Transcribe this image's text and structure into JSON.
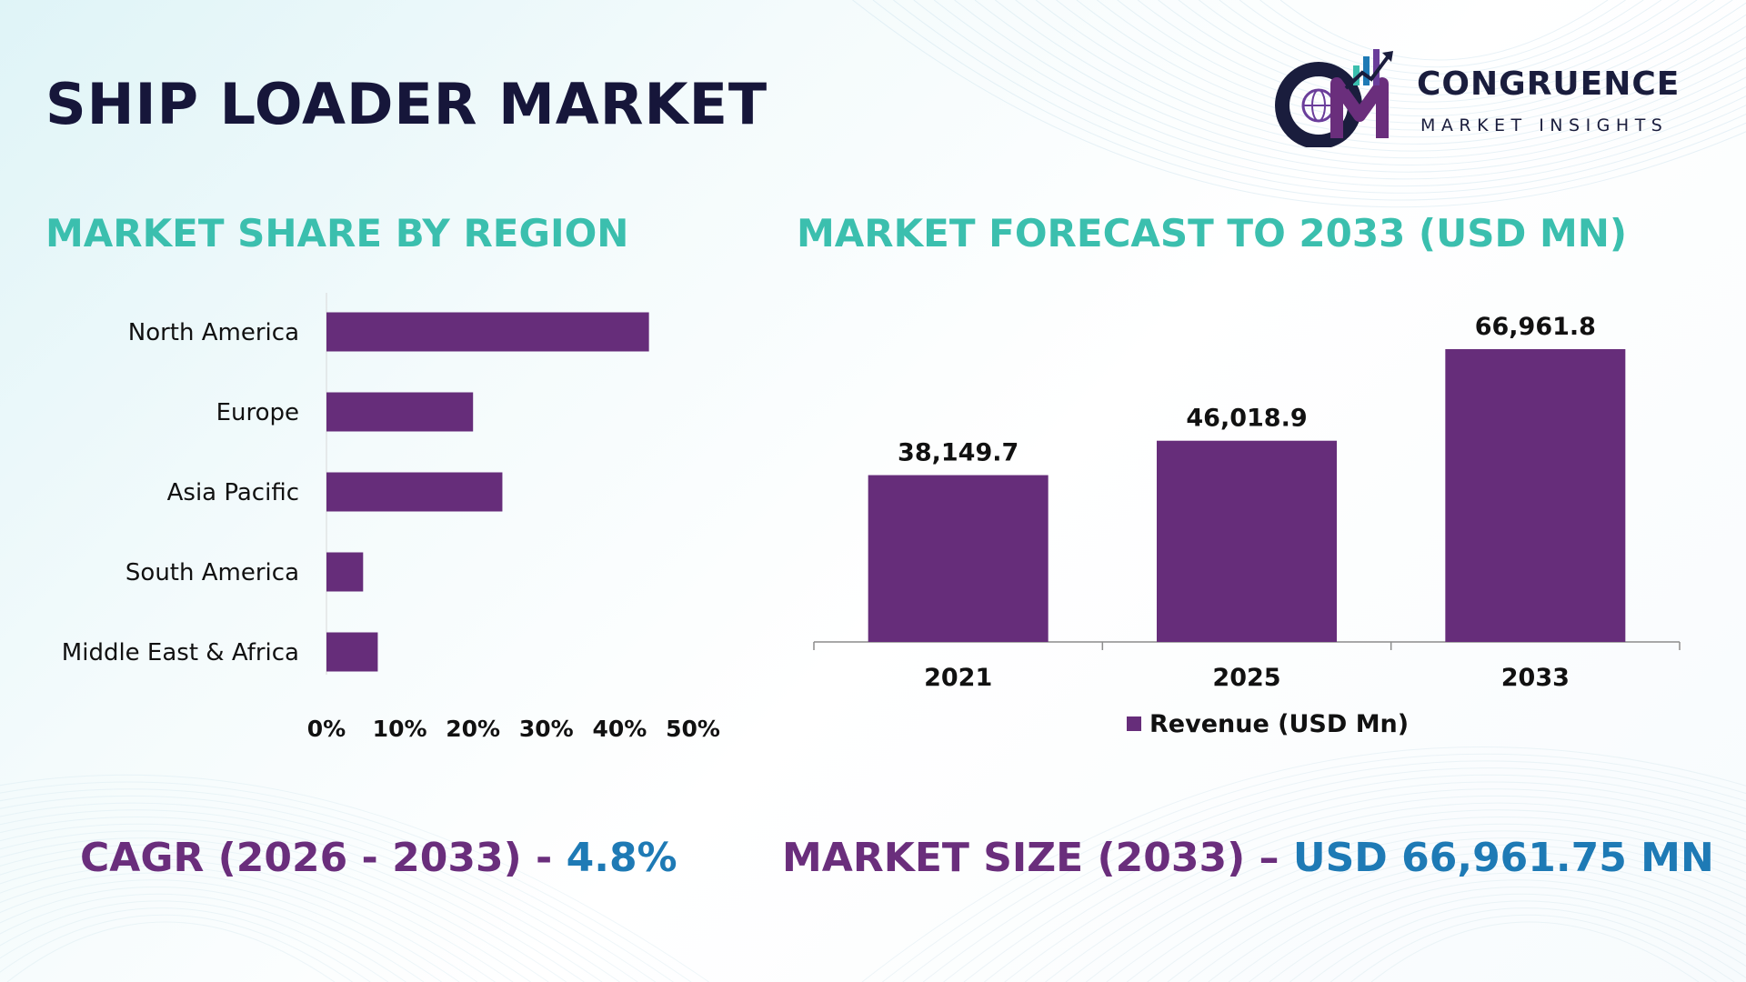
{
  "page": {
    "title": "SHIP LOADER MARKET"
  },
  "logo": {
    "name": "CONGRUENCE",
    "tagline": "MARKET INSIGHTS",
    "icon": "cmi-logo-icon"
  },
  "colors": {
    "bar": "#662d7a",
    "title": "#16163a",
    "section_title": "#3bbfae",
    "footer_purple": "#6a2e7c",
    "footer_blue": "#1e7ab5"
  },
  "chart_data": [
    {
      "type": "bar",
      "orientation": "horizontal",
      "title": "MARKET SHARE BY REGION",
      "categories": [
        "North America",
        "Europe",
        "Asia Pacific",
        "South America",
        "Middle East & Africa"
      ],
      "values": [
        44,
        20,
        24,
        5,
        7
      ],
      "unit": "%",
      "xlim": [
        0,
        50
      ],
      "ticks": [
        "0%",
        "10%",
        "20%",
        "30%",
        "40%",
        "50%"
      ],
      "grid": false,
      "legend": "none"
    },
    {
      "type": "bar",
      "orientation": "vertical",
      "title": "MARKET FORECAST TO 2033 (USD MN)",
      "categories": [
        "2021",
        "2025",
        "2033"
      ],
      "series": [
        {
          "name": "Revenue (USD Mn)",
          "values": [
            38149.7,
            46018.9,
            66961.8
          ],
          "labels": [
            "38,149.7",
            "46,018.9",
            "66,961.8"
          ]
        }
      ],
      "ylim": [
        0,
        70000
      ],
      "grid": false,
      "legend": "bottom"
    }
  ],
  "footer": {
    "cagr_label": "CAGR (2026 - 2033) - ",
    "cagr_value": "4.8%",
    "size_label": "MARKET SIZE (2033) – ",
    "size_value": "USD 66,961.75 MN"
  }
}
